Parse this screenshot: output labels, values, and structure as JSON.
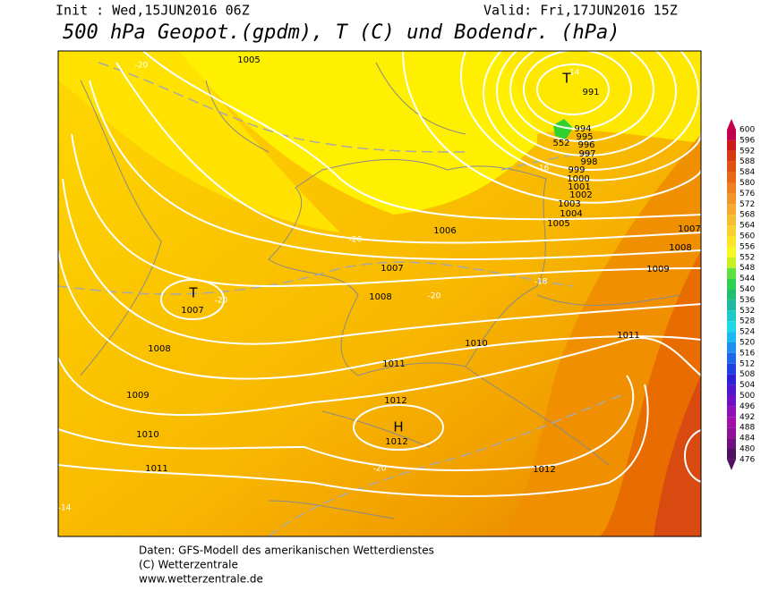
{
  "header": {
    "init": "Init : Wed,15JUN2016 06Z",
    "valid": "Valid: Fri,17JUN2016 15Z",
    "title": "500 hPa Geopot.(gpdm), T (C) und Bodendr. (hPa)"
  },
  "map_labels": [
    "-20",
    "1005",
    "-14",
    "T",
    "991",
    "552",
    "994",
    "995",
    "996",
    "997",
    "998",
    "999",
    "1000",
    "1001",
    "1002",
    "1003",
    "1004",
    "1005",
    "-16",
    "1006",
    "-20",
    "1007",
    "1008",
    "1007",
    "1009",
    "-18",
    "T",
    "1007",
    "-20",
    "1008",
    "-20",
    "1008",
    "1010",
    "1011",
    "1011",
    "1009",
    "1012",
    "H",
    "1012",
    "1010",
    "-20",
    "1011",
    "1012",
    "-14"
  ],
  "colorbar": {
    "levels": [
      600,
      596,
      592,
      588,
      584,
      580,
      576,
      572,
      568,
      564,
      560,
      556,
      552,
      548,
      544,
      540,
      536,
      532,
      528,
      524,
      520,
      516,
      512,
      508,
      504,
      500,
      496,
      492,
      488,
      484,
      480,
      476
    ],
    "colors": [
      "#c0004c",
      "#cc1a1a",
      "#d63a10",
      "#e05010",
      "#e86818",
      "#ee8020",
      "#f29428",
      "#f6a830",
      "#f8bc30",
      "#fad030",
      "#fce428",
      "#f8f820",
      "#c8f020",
      "#60e040",
      "#30d050",
      "#20c070",
      "#20b8a0",
      "#20c8c8",
      "#20d8e8",
      "#20b8f0",
      "#2090f0",
      "#2068e8",
      "#2040e0",
      "#3020d8",
      "#5018c8",
      "#7010c0",
      "#9010b8",
      "#a010a8",
      "#901098",
      "#701080",
      "#501060"
    ]
  },
  "footer": {
    "line1": "Daten: GFS-Modell des amerikanischen Wetterdienstes",
    "line2": "(C) Wetterzentrale",
    "line3": "www.wetterzentrale.de"
  }
}
